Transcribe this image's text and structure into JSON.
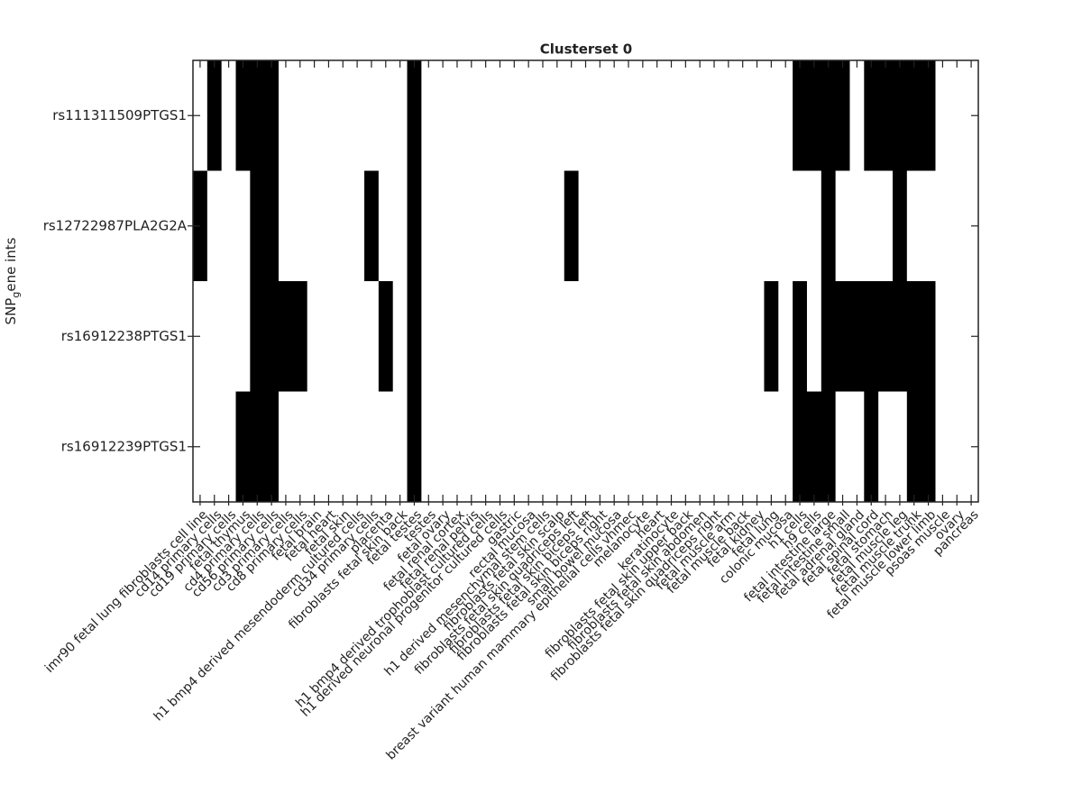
{
  "chart_data": {
    "type": "heatmap",
    "title": "Clusterset 0",
    "ylabel": [
      "SNP",
      "g",
      "ene ints"
    ],
    "rows": [
      "rs111311509PTGS1",
      "rs12722987PLA2G2A",
      "rs16912238PTGS1",
      "rs16912239PTGS1"
    ],
    "categories": [
      "imr90 fetal lung fibroblasts cell line",
      "cd14 primary cells",
      "cd19 primary cells",
      "fetal thymus",
      "cd4 primary cells",
      "cd56 primary cells",
      "cd3 primary cells",
      "cd8 primary cells",
      "fetal brain",
      "fetal heart",
      "fetal skin",
      "h1 bmp4 derived mesendoderm cultured cells",
      "cd34 primary cells",
      "placenta",
      "fibroblasts fetal skin back",
      "fetal testes",
      "testes",
      "fetal ovary",
      "fetal renal cortex",
      "fetal renal pelvis",
      "h1 bmp4 derived trophoblast cultured cells",
      "h1 derived neuronal progenitor cultured cells",
      "gastric",
      "rectal mucosa",
      "h1 derived mesenchymal stem cells",
      "fibroblasts fetal skin scalp",
      "fibroblasts fetal skin quadriceps left",
      "fibroblasts fetal skin biceps left",
      "fibroblasts fetal skin biceps right",
      "small bowel mucosa",
      "breast variant human mammary epithelial cells vhmec",
      "melanocyte",
      "heart",
      "keratinocyte",
      "fibroblasts fetal skin upper back",
      "fibroblasts fetal skin abdomen",
      "fibroblasts fetal skin quadriceps right",
      "fetal muscle arm",
      "fetal muscle back",
      "fetal kidney",
      "fetal lung",
      "colonic mucosa",
      "h1 cells",
      "h9 cells",
      "fetal intestine large",
      "fetal intestine small",
      "fetal adrenal gland",
      "fetal spinal cord",
      "fetal stomach",
      "fetal muscle leg",
      "fetal muscle trunk",
      "fetal muscle lower limb",
      "psoas muscle",
      "ovary",
      "pancreas"
    ],
    "values": [
      [
        0,
        1,
        0,
        1,
        1,
        1,
        0,
        0,
        0,
        0,
        0,
        0,
        0,
        0,
        0,
        1,
        0,
        0,
        0,
        0,
        0,
        0,
        0,
        0,
        0,
        0,
        0,
        0,
        0,
        0,
        0,
        0,
        0,
        0,
        0,
        0,
        0,
        0,
        0,
        0,
        0,
        0,
        1,
        1,
        1,
        1,
        0,
        1,
        1,
        1,
        1,
        1,
        0,
        0,
        0
      ],
      [
        1,
        0,
        0,
        0,
        1,
        1,
        0,
        0,
        0,
        0,
        0,
        0,
        1,
        0,
        0,
        1,
        0,
        0,
        0,
        0,
        0,
        0,
        0,
        0,
        0,
        0,
        1,
        0,
        0,
        0,
        0,
        0,
        0,
        0,
        0,
        0,
        0,
        0,
        0,
        0,
        0,
        0,
        0,
        0,
        1,
        0,
        0,
        0,
        0,
        1,
        0,
        0,
        0,
        0,
        0
      ],
      [
        0,
        0,
        0,
        0,
        1,
        1,
        1,
        1,
        0,
        0,
        0,
        0,
        0,
        1,
        0,
        1,
        0,
        0,
        0,
        0,
        0,
        0,
        0,
        0,
        0,
        0,
        0,
        0,
        0,
        0,
        0,
        0,
        0,
        0,
        0,
        0,
        0,
        0,
        0,
        0,
        1,
        0,
        1,
        0,
        1,
        1,
        1,
        1,
        1,
        1,
        1,
        1,
        0,
        0,
        0
      ],
      [
        0,
        0,
        0,
        1,
        1,
        1,
        0,
        0,
        0,
        0,
        0,
        0,
        0,
        0,
        0,
        1,
        0,
        0,
        0,
        0,
        0,
        0,
        0,
        0,
        0,
        0,
        0,
        0,
        0,
        0,
        0,
        0,
        0,
        0,
        0,
        0,
        0,
        0,
        0,
        0,
        0,
        0,
        1,
        1,
        1,
        0,
        0,
        1,
        0,
        0,
        1,
        1,
        0,
        0,
        0
      ]
    ],
    "colors": [
      "#ffffff",
      "#000000"
    ]
  }
}
